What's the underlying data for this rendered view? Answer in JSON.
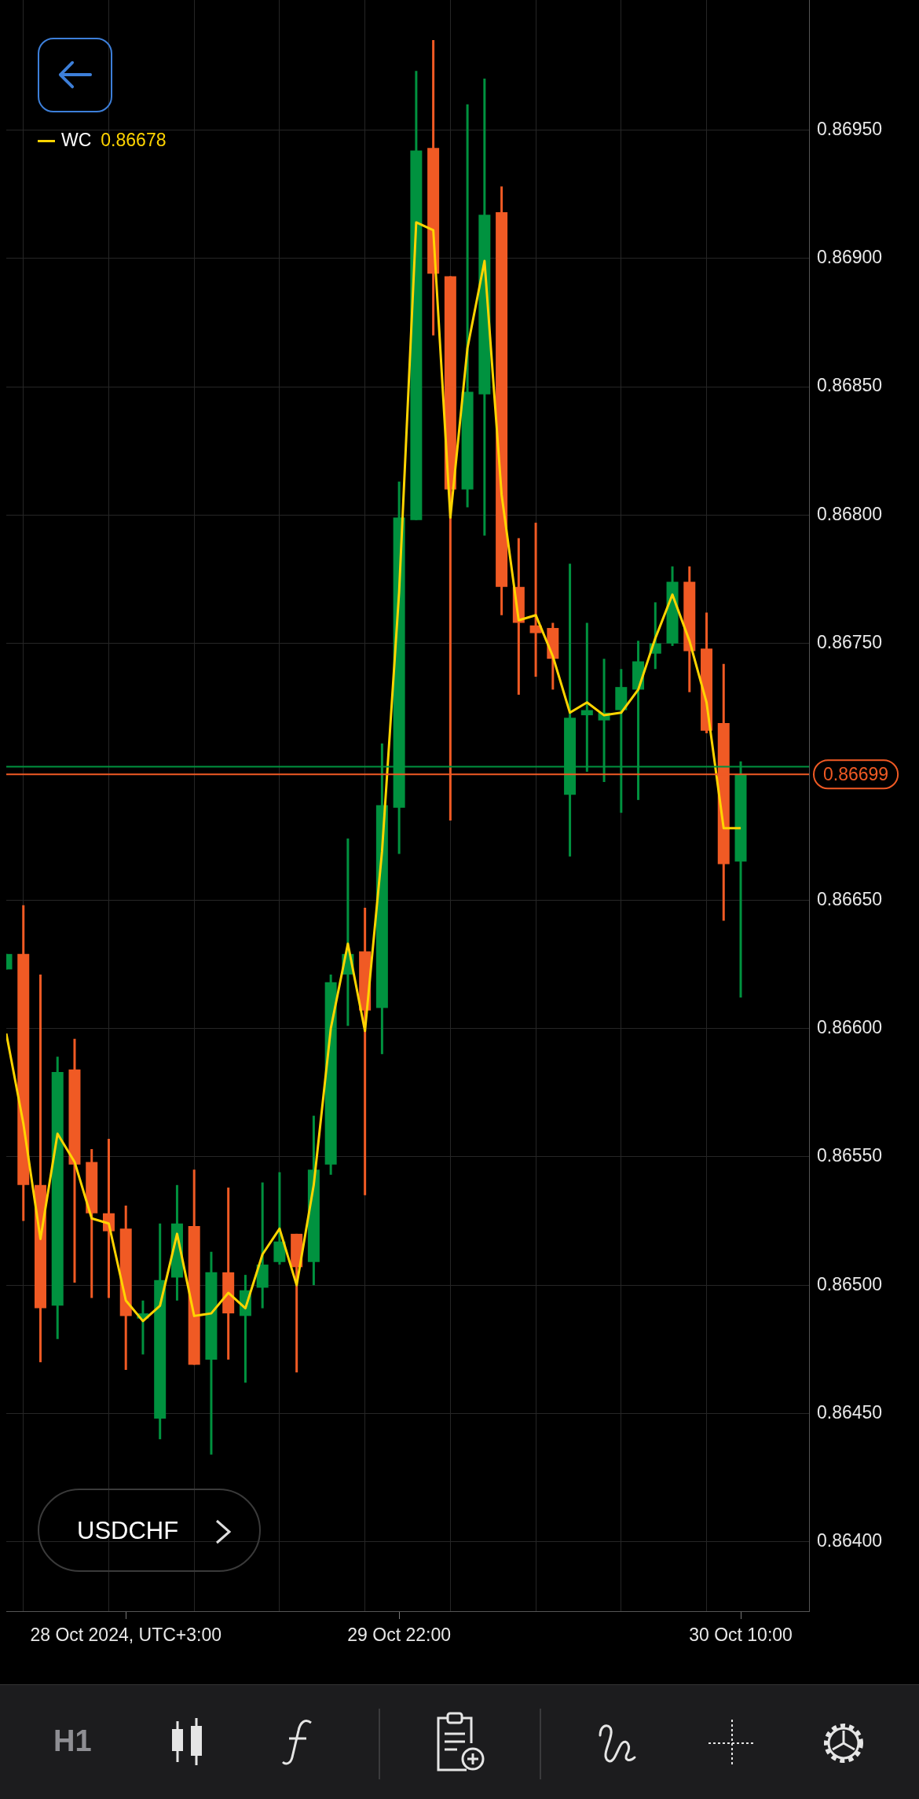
{
  "chart_data": {
    "type": "candlestick",
    "title": "USDCHF",
    "categories": [
      null,
      null,
      null,
      null,
      null,
      null,
      null,
      "28 Oct 2024, UTC+3:00",
      null,
      null,
      null,
      null,
      null,
      null,
      null,
      null,
      null,
      null,
      null,
      null,
      null,
      null,
      null,
      "29 Oct 22:00",
      null,
      null,
      null,
      null,
      null,
      null,
      null,
      null,
      null,
      null,
      null,
      null,
      null,
      null,
      null,
      null,
      null,
      null,
      null,
      "30 Oct 10:00"
    ],
    "series": [
      {
        "type": "candlestick",
        "ohlc": [
          [
            0.86623,
            0.86629,
            0.86623,
            0.86629
          ],
          [
            0.86629,
            0.86648,
            0.86525,
            0.86539
          ],
          [
            0.86539,
            0.86621,
            0.8647,
            0.86491
          ],
          [
            0.86492,
            0.86589,
            0.86479,
            0.86583
          ],
          [
            0.86584,
            0.86596,
            0.86501,
            0.86547
          ],
          [
            0.86548,
            0.86553,
            0.86495,
            0.86528
          ],
          [
            0.86528,
            0.86557,
            0.86495,
            0.86521
          ],
          [
            0.86522,
            0.86531,
            0.86467,
            0.86488
          ],
          [
            0.86487,
            0.86494,
            0.86473,
            0.86489
          ],
          [
            0.86448,
            0.86524,
            0.8644,
            0.86502
          ],
          [
            0.86503,
            0.86539,
            0.86494,
            0.86524
          ],
          [
            0.86523,
            0.86545,
            0.86469,
            0.86469
          ],
          [
            0.86471,
            0.86513,
            0.86434,
            0.86505
          ],
          [
            0.86505,
            0.86538,
            0.86471,
            0.86489
          ],
          [
            0.86488,
            0.86504,
            0.86462,
            0.86498
          ],
          [
            0.86499,
            0.8654,
            0.86491,
            0.86508
          ],
          [
            0.86509,
            0.86544,
            0.86508,
            0.86517
          ],
          [
            0.8652,
            0.8652,
            0.86466,
            0.86507
          ],
          [
            0.86509,
            0.86566,
            0.865,
            0.86545
          ],
          [
            0.86547,
            0.86621,
            0.86543,
            0.86618
          ],
          [
            0.86621,
            0.86674,
            0.86601,
            0.86629
          ],
          [
            0.8663,
            0.86647,
            0.86535,
            0.86607
          ],
          [
            0.86608,
            0.86711,
            0.8659,
            0.86687
          ],
          [
            0.86686,
            0.86813,
            0.86668,
            0.86799
          ],
          [
            0.86798,
            0.86973,
            0.86798,
            0.86942
          ],
          [
            0.86943,
            0.86985,
            0.8687,
            0.86894
          ],
          [
            0.86893,
            0.86893,
            0.86681,
            0.8681
          ],
          [
            0.8681,
            0.8696,
            0.86803,
            0.86848
          ],
          [
            0.86847,
            0.8697,
            0.86792,
            0.86917
          ],
          [
            0.86918,
            0.86928,
            0.86761,
            0.86772
          ],
          [
            0.86772,
            0.86791,
            0.8673,
            0.86758
          ],
          [
            0.86757,
            0.86797,
            0.86737,
            0.86754
          ],
          [
            0.86756,
            0.86758,
            0.86732,
            0.86744
          ],
          [
            0.86691,
            0.86781,
            0.86667,
            0.86721
          ],
          [
            0.86722,
            0.86758,
            0.867,
            0.86724
          ],
          [
            0.8672,
            0.86744,
            0.86696,
            0.86723
          ],
          [
            0.86724,
            0.8674,
            0.86684,
            0.86733
          ],
          [
            0.86732,
            0.86751,
            0.86689,
            0.86743
          ],
          [
            0.86746,
            0.86766,
            0.8674,
            0.8675
          ],
          [
            0.8675,
            0.8678,
            0.86749,
            0.86774
          ],
          [
            0.86774,
            0.8678,
            0.86731,
            0.86747
          ],
          [
            0.86748,
            0.86762,
            0.86715,
            0.86716
          ],
          [
            0.86719,
            0.86742,
            0.86642,
            0.86664
          ],
          [
            0.86665,
            0.86704,
            0.86612,
            0.86699
          ]
        ],
        "colors": [
          "#00923f",
          "#f05a24",
          "#f05a24",
          "#00923f",
          "#f05a24",
          "#f05a24",
          "#f05a24",
          "#f05a24",
          "#00923f",
          "#00923f",
          "#00923f",
          "#f05a24",
          "#00923f",
          "#f05a24",
          "#00923f",
          "#00923f",
          "#00923f",
          "#f05a24",
          "#00923f",
          "#00923f",
          "#00923f",
          "#f05a24",
          "#00923f",
          "#00923f",
          "#00923f",
          "#f05a24",
          "#f05a24",
          "#00923f",
          "#00923f",
          "#f05a24",
          "#f05a24",
          "#f05a24",
          "#f05a24",
          "#00923f",
          "#00923f",
          "#00923f",
          "#00923f",
          "#00923f",
          "#00923f",
          "#00923f",
          "#f05a24",
          "#f05a24",
          "#f05a24",
          "#00923f"
        ]
      },
      {
        "type": "line",
        "name": "WC",
        "color": "#ffd400",
        "values": [
          0.86598,
          0.86563,
          0.86518,
          0.86559,
          0.86548,
          0.86526,
          0.86524,
          0.86494,
          0.86486,
          0.86492,
          0.8652,
          0.86488,
          0.86489,
          0.86497,
          0.86491,
          0.86512,
          0.86522,
          0.865,
          0.86539,
          0.866,
          0.86633,
          0.86599,
          0.86669,
          0.8677,
          0.86914,
          0.86911,
          0.86799,
          0.86865,
          0.86899,
          0.86808,
          0.86759,
          0.86761,
          0.86745,
          0.86723,
          0.86727,
          0.86722,
          0.86723,
          0.86732,
          0.86752,
          0.86769,
          0.86751,
          0.86727,
          0.86678,
          0.86678
        ]
      }
    ],
    "ylim": [
      0.86373,
      0.87001
    ],
    "yticks": [
      {
        "value": 0.864,
        "label": "0.86400"
      },
      {
        "value": 0.8645,
        "label": "0.86450"
      },
      {
        "value": 0.865,
        "label": "0.86500"
      },
      {
        "value": 0.8655,
        "label": "0.86550"
      },
      {
        "value": 0.866,
        "label": "0.86600"
      },
      {
        "value": 0.8665,
        "label": "0.86650"
      },
      {
        "value": 0.867,
        "label": null
      },
      {
        "value": 0.8675,
        "label": "0.86750"
      },
      {
        "value": 0.868,
        "label": "0.86800"
      },
      {
        "value": 0.8685,
        "label": "0.86850"
      },
      {
        "value": 0.869,
        "label": "0.86900"
      },
      {
        "value": 0.8695,
        "label": "0.86950"
      }
    ],
    "ref_lines": [
      {
        "axis": "y",
        "value": 0.86702,
        "color": "#00923f"
      },
      {
        "axis": "y",
        "value": 0.86699,
        "label": "0.86699",
        "color": "#f05a24"
      }
    ],
    "annotations": [
      "0.86678",
      "H1"
    ],
    "grid": true,
    "legend": "top left"
  }
}
